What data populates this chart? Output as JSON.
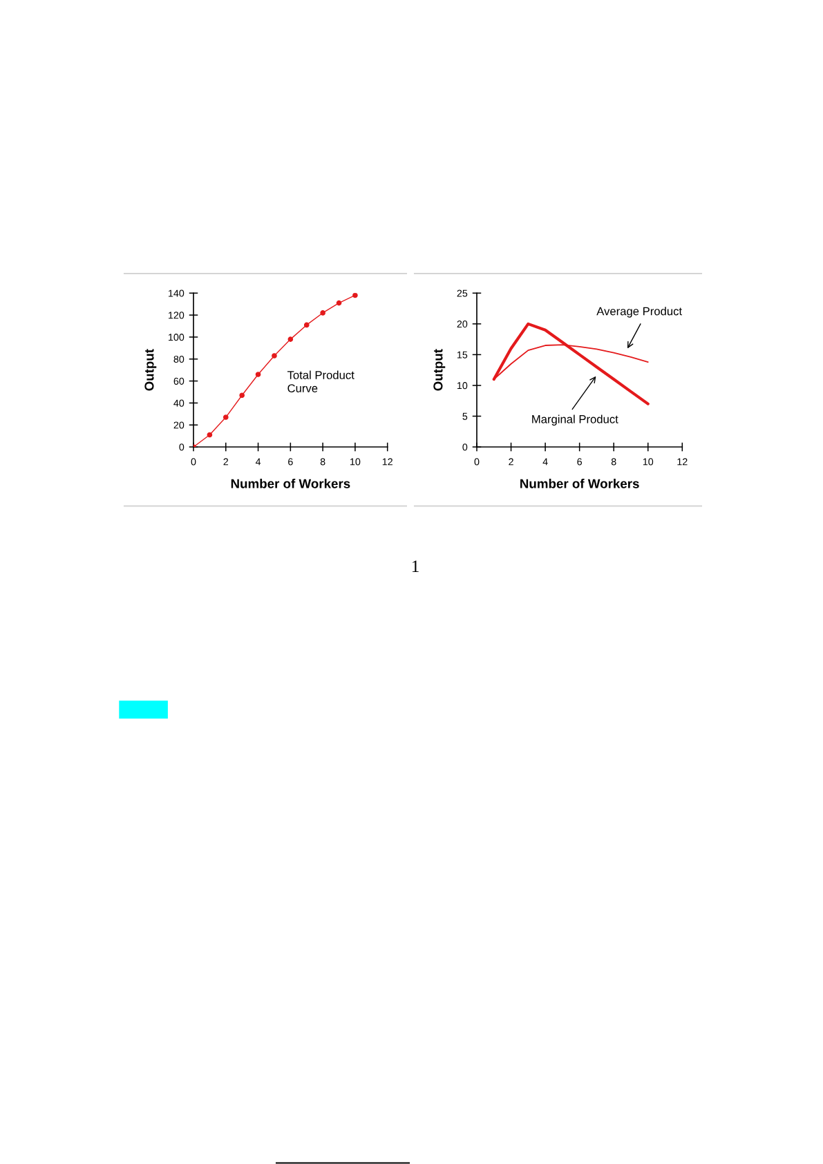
{
  "chart_data": [
    {
      "type": "line",
      "xlabel": "Number of Workers",
      "ylabel": "Output",
      "x": [
        0,
        1,
        2,
        3,
        4,
        5,
        6,
        7,
        8,
        9,
        10
      ],
      "series": [
        {
          "name": "Total Product\nCurve",
          "color": "#e41a1c",
          "values": [
            0,
            11,
            27,
            47,
            66,
            83,
            98,
            111,
            122,
            131,
            138
          ]
        }
      ],
      "xlim": [
        0,
        12
      ],
      "ylim": [
        0,
        140
      ],
      "xticks": [
        0,
        2,
        4,
        6,
        8,
        10,
        12
      ],
      "yticks": [
        0,
        20,
        40,
        60,
        80,
        100,
        120,
        140
      ],
      "marker": "circle",
      "line_style": "solid",
      "grid": false
    },
    {
      "type": "line",
      "xlabel": "Number of Workers",
      "ylabel": "Output",
      "x": [
        1,
        2,
        3,
        4,
        5,
        6,
        7,
        8,
        9,
        10
      ],
      "series": [
        {
          "color": "#e41a1c",
          "values": [
            11,
            16,
            20,
            19,
            17,
            15,
            13,
            11,
            9,
            7
          ]
        },
        {
          "color": "#e41a1c",
          "values": [
            11,
            13.5,
            15.7,
            16.5,
            16.6,
            16.3,
            15.9,
            15.3,
            14.6,
            13.8
          ]
        }
      ],
      "xlim": [
        0,
        12
      ],
      "ylim": [
        0,
        25
      ],
      "xticks": [
        0,
        2,
        4,
        6,
        8,
        10,
        12
      ],
      "yticks": [
        0,
        5,
        10,
        15,
        20,
        25
      ],
      "marker": "none",
      "line_style": "solid",
      "grid": false,
      "annotations": [
        "Average Product",
        "Marginal Product",
        "1"
      ]
    }
  ]
}
